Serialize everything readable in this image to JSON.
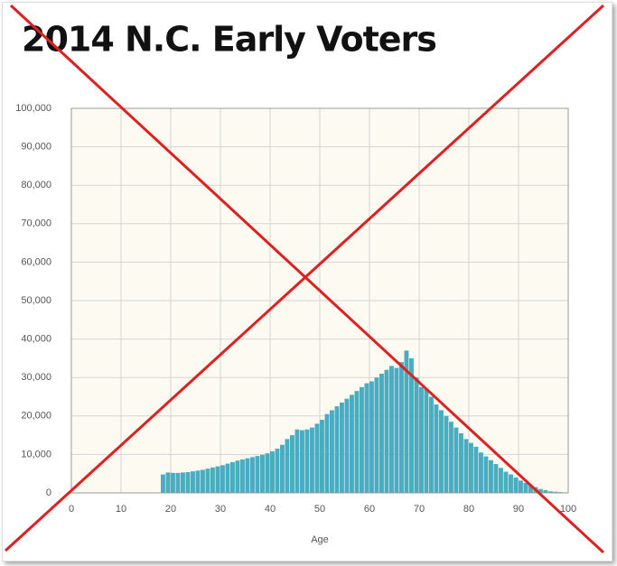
{
  "chart_data": {
    "type": "histogram",
    "title": "2014 N.C. Early Voters",
    "x_label": "Age",
    "bins": [
      18,
      19,
      20,
      21,
      22,
      23,
      24,
      25,
      26,
      27,
      28,
      29,
      30,
      31,
      32,
      33,
      34,
      35,
      36,
      37,
      38,
      39,
      40,
      41,
      42,
      43,
      44,
      45,
      46,
      47,
      48,
      49,
      50,
      51,
      52,
      53,
      54,
      55,
      56,
      57,
      58,
      59,
      60,
      61,
      62,
      63,
      64,
      65,
      66,
      67,
      68,
      69,
      70,
      71,
      72,
      73,
      74,
      75,
      76,
      77,
      78,
      79,
      80,
      81,
      82,
      83,
      84,
      85,
      86,
      87,
      88,
      89,
      90,
      91,
      92,
      93,
      94,
      95,
      96,
      97,
      98,
      99,
      100
    ],
    "values": [
      4800,
      5300,
      5200,
      5200,
      5300,
      5400,
      5600,
      5800,
      6000,
      6300,
      6600,
      6900,
      7200,
      7600,
      8000,
      8400,
      8700,
      9000,
      9300,
      9600,
      9900,
      10300,
      10800,
      11500,
      12500,
      14000,
      15000,
      16500,
      16300,
      16500,
      17000,
      18000,
      19000,
      20500,
      21500,
      22500,
      23500,
      24500,
      25500,
      26500,
      27500,
      28500,
      29000,
      30000,
      31000,
      32000,
      33000,
      32500,
      34000,
      37000,
      35000,
      30000,
      27500,
      27000,
      25000,
      23000,
      21500,
      20000,
      18500,
      17000,
      15500,
      14000,
      13000,
      12000,
      10500,
      9500,
      8500,
      7500,
      6500,
      5500,
      4800,
      4000,
      3200,
      2600,
      2000,
      1500,
      1000,
      700,
      400,
      300,
      200,
      100
    ],
    "color": "#48adc1",
    "xlim": [
      0,
      100
    ],
    "xticks": [
      0,
      10,
      20,
      30,
      40,
      50,
      60,
      70,
      80,
      90,
      100
    ],
    "ylim": [
      0,
      100000
    ],
    "yticks": [
      0,
      {
        "value": 10000,
        "label": "10,000"
      },
      {
        "value": 20000,
        "label": "20,000"
      },
      {
        "value": 30000,
        "label": "30,000"
      },
      {
        "value": 40000,
        "label": "40,000"
      },
      {
        "value": 50000,
        "label": "50,000"
      },
      {
        "value": 60000,
        "label": "60,000"
      },
      {
        "value": 70000,
        "label": "70,000"
      },
      {
        "value": 80000,
        "label": "80,000"
      },
      {
        "value": 90000,
        "label": "90,000"
      },
      {
        "value": 100000,
        "label": "100,000"
      }
    ],
    "grid": true
  }
}
